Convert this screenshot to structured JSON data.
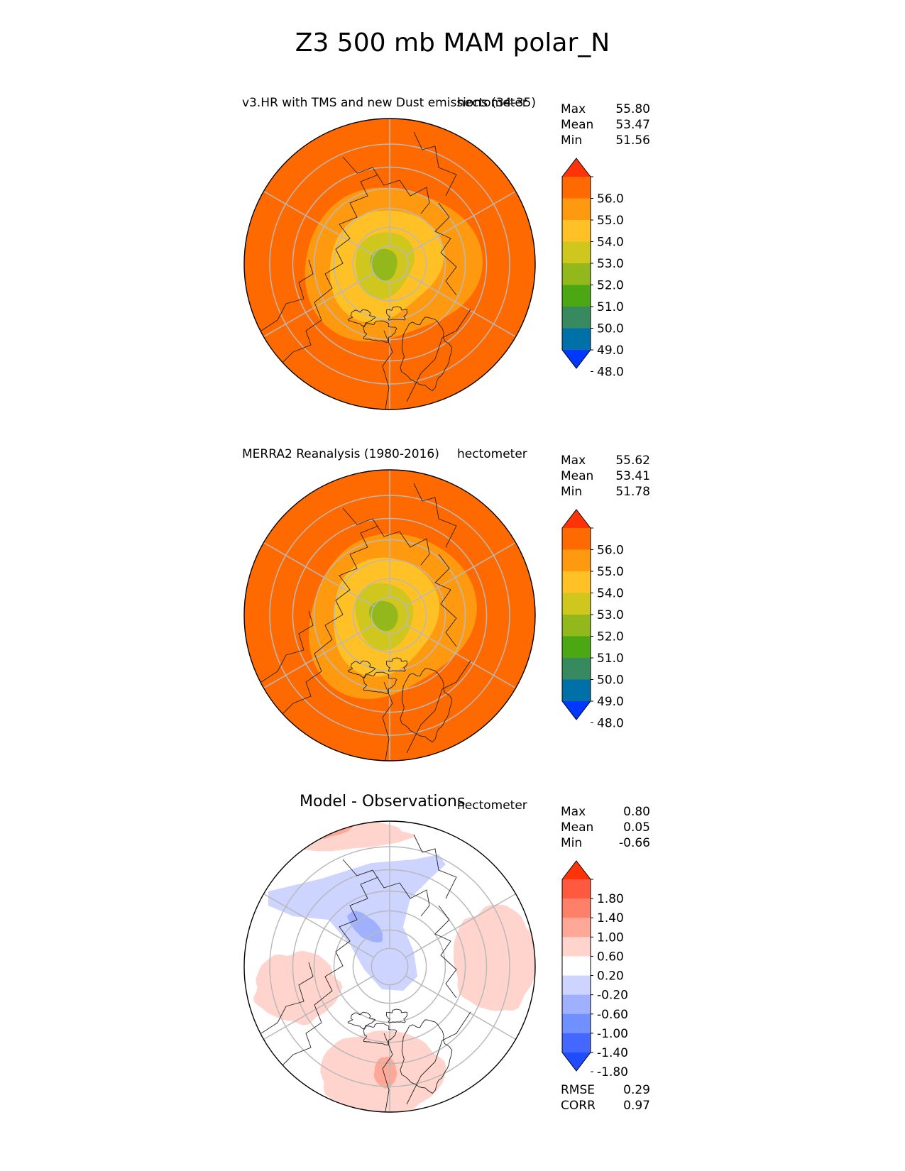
{
  "title": "Z3 500 mb MAM polar_N",
  "chart_data": [
    {
      "type": "heatmap",
      "projection": "north polar stereographic",
      "title": "v3.HR with TMS and new Dust emissions (34-35)",
      "units": "hectometer",
      "stats": [
        {
          "label": "Max",
          "value": "55.80"
        },
        {
          "label": "Mean",
          "value": "53.47"
        },
        {
          "label": "Min",
          "value": "51.56"
        }
      ],
      "colorbar": {
        "ticks": [
          "56.0",
          "55.0",
          "54.0",
          "53.0",
          "52.0",
          "51.0",
          "50.0",
          "49.0",
          "48.0"
        ],
        "colors": [
          "#ff3308",
          "#ff6a00",
          "#ff9a10",
          "#ffc125",
          "#cfc71e",
          "#92b81c",
          "#4ca812",
          "#378a60",
          "#0070a8",
          "#0038ff"
        ],
        "extend": "both"
      },
      "field": {
        "pole": 51.6,
        "ring75": 52.0,
        "ring60": 53.2,
        "ring45": 54.4,
        "ring30": 55.4,
        "wave_amplitude": 0.5
      }
    },
    {
      "type": "heatmap",
      "projection": "north polar stereographic",
      "title": "MERRA2 Reanalysis (1980-2016)",
      "units": "hectometer",
      "stats": [
        {
          "label": "Max",
          "value": "55.62"
        },
        {
          "label": "Mean",
          "value": "53.41"
        },
        {
          "label": "Min",
          "value": "51.78"
        }
      ],
      "colorbar": {
        "ticks": [
          "56.0",
          "55.0",
          "54.0",
          "53.0",
          "52.0",
          "51.0",
          "50.0",
          "49.0",
          "48.0"
        ],
        "colors": [
          "#ff3308",
          "#ff6a00",
          "#ff9a10",
          "#ffc125",
          "#cfc71e",
          "#92b81c",
          "#4ca812",
          "#378a60",
          "#0070a8",
          "#0038ff"
        ],
        "extend": "both"
      },
      "field": {
        "pole": 51.8,
        "ring75": 52.1,
        "ring60": 53.1,
        "ring45": 54.3,
        "ring30": 55.3,
        "wave_amplitude": 0.45
      }
    },
    {
      "type": "heatmap",
      "projection": "north polar stereographic",
      "title": "Model - Observations",
      "units": "hectometer",
      "stats": [
        {
          "label": "Max",
          "value": "0.80"
        },
        {
          "label": "Mean",
          "value": "0.05"
        },
        {
          "label": "Min",
          "value": "-0.66"
        }
      ],
      "colorbar": {
        "ticks": [
          "1.80",
          "1.40",
          "1.00",
          "0.60",
          "0.20",
          "-0.20",
          "-0.60",
          "-1.00",
          "-1.40",
          "-1.80"
        ],
        "colors": [
          "#ff3308",
          "#ff5a40",
          "#ff8068",
          "#ffa898",
          "#ffd4cc",
          "#ffffff",
          "#ccd4ff",
          "#9fb0ff",
          "#7090ff",
          "#4468ff",
          "#1f4cff"
        ],
        "extend": "both"
      },
      "metrics": [
        {
          "label": "RMSE",
          "value": "0.29"
        },
        {
          "label": "CORR",
          "value": "0.97"
        }
      ]
    }
  ]
}
